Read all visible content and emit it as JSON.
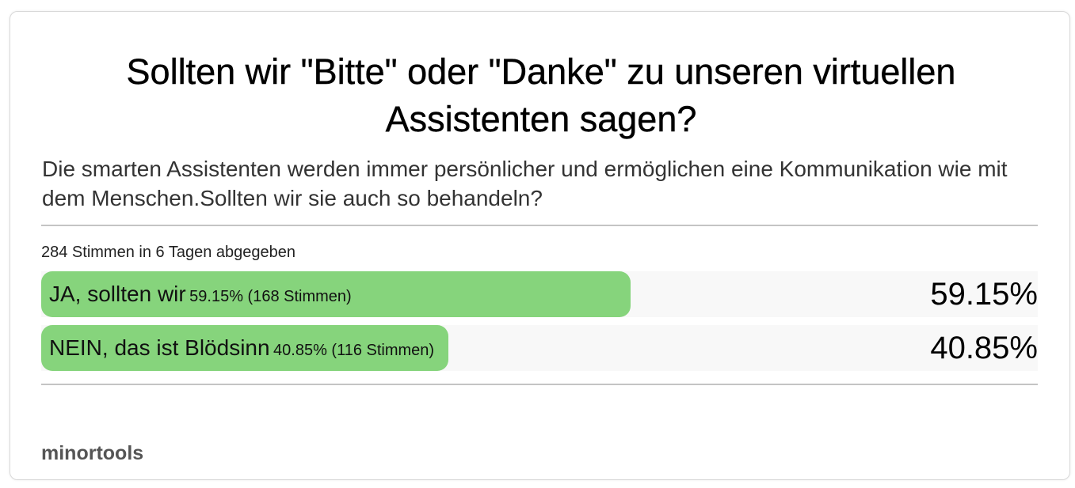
{
  "poll": {
    "title": "Sollten wir \"Bitte\" oder \"Danke\" zu unseren virtuellen Assistenten sagen?",
    "description": "Die smarten Assistenten werden immer persönlicher und ermöglichen eine Kommunikation wie mit dem Menschen.Sollten wir sie auch so behandeln?",
    "vote_summary": "284 Stimmen in 6 Tagen abgegeben",
    "options": [
      {
        "label": "JA, sollten wir",
        "detail": "59.15% (168 Stimmen)",
        "percent_text": "59.15%",
        "share": 0.5915
      },
      {
        "label": "NEIN, das ist Blödsinn",
        "detail": "40.85% (116 Stimmen)",
        "percent_text": "40.85%",
        "share": 0.4085
      }
    ]
  },
  "footer": {
    "brand": "minortools"
  },
  "colors": {
    "bar_fill": "#86d47c",
    "row_background": "#f8f8f8",
    "divider": "#c4c4c4"
  }
}
